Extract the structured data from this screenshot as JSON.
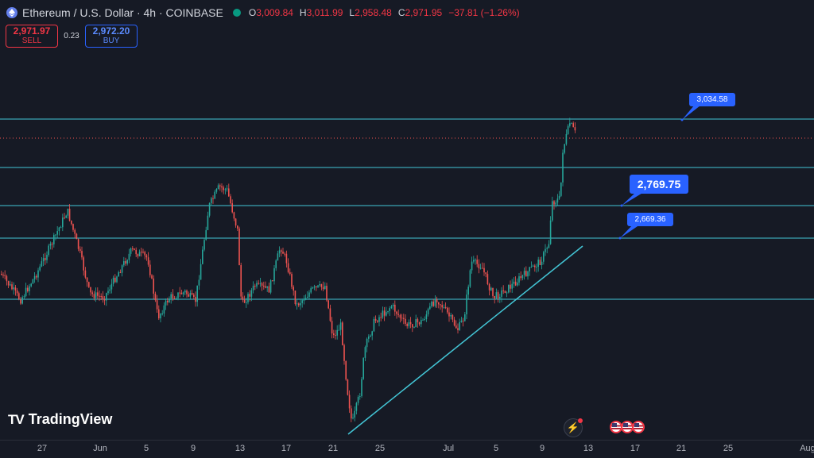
{
  "header": {
    "symbol_title": "Ethereum / U.S. Dollar · 4h · COINBASE",
    "ohlc": {
      "o_label": "O",
      "o_value": "3,009.84",
      "h_label": "H",
      "h_value": "3,011.99",
      "l_label": "L",
      "l_value": "2,958.48",
      "c_label": "C",
      "c_value": "2,971.95",
      "change": "−37.81 (−1.26%)"
    }
  },
  "trade": {
    "sell_price": "2,971.97",
    "sell_label": "SELL",
    "spread": "0.23",
    "buy_price": "2,972.20",
    "buy_label": "BUY"
  },
  "price_labels": {
    "top": "3,034.58",
    "middle": "2,769.75",
    "lower": "2,669.36"
  },
  "x_axis": [
    "27",
    "Jun",
    "5",
    "9",
    "13",
    "17",
    "21",
    "25",
    "Jul",
    "5",
    "9",
    "13",
    "17",
    "21",
    "25",
    "Aug"
  ],
  "brand": {
    "logo_mark": "TV",
    "logo_text": "TradingView"
  },
  "colors": {
    "background": "#161a25",
    "up": "#26a69a",
    "down": "#ef5350",
    "lines": "#43c6d6",
    "label": "#2962ff"
  },
  "chart_data": {
    "type": "candlestick",
    "title": "Ethereum / U.S. Dollar · 4h · COINBASE",
    "horizontal_levels": [
      3034.58,
      2769.75,
      2669.36
    ],
    "last_close": 2971.95,
    "x_ticks": [
      "27",
      "Jun",
      "5",
      "9",
      "13",
      "17",
      "21",
      "25",
      "Jul",
      "5",
      "9",
      "13",
      "17",
      "21",
      "25",
      "Aug"
    ]
  }
}
